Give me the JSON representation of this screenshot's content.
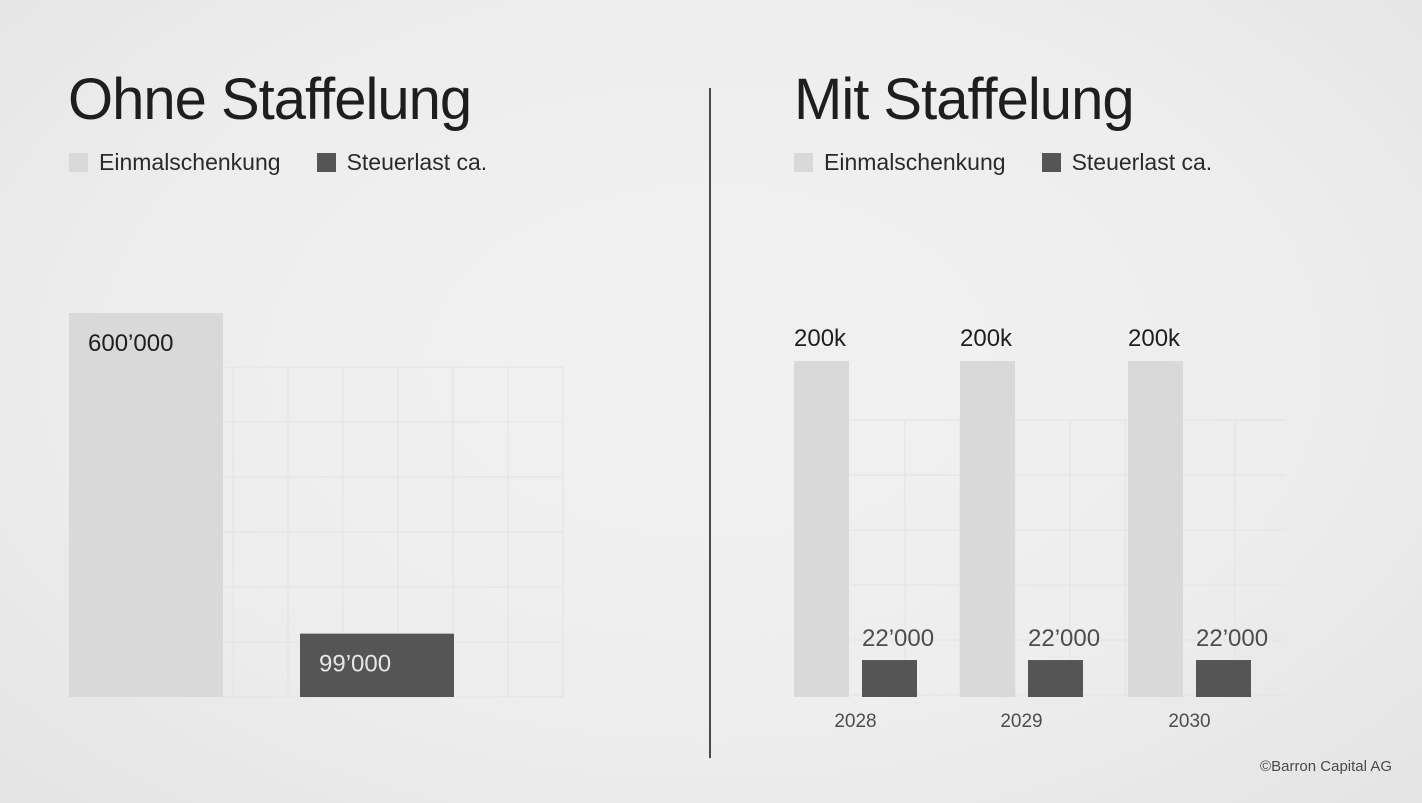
{
  "colors": {
    "einmalschenkung": "#d9d9d9",
    "steuerlast": "#555555",
    "grid": "#e3e3e3",
    "label_dark": "#1f1f1f",
    "label_light": "#e6e6e6",
    "label_mid": "#4d4d4d"
  },
  "chart_data": [
    {
      "type": "bar",
      "title": "Ohne Staffelung",
      "legend": {
        "placement": "top-left",
        "items": [
          "Einmalschenkung",
          "Steuerlast ca."
        ]
      },
      "grid": true,
      "ylim": [
        0,
        600000
      ],
      "series": [
        {
          "name": "Einmalschenkung",
          "values": [
            600000
          ],
          "labels": [
            "600’000"
          ]
        },
        {
          "name": "Steuerlast ca.",
          "values": [
            99000
          ],
          "labels": [
            "99’000"
          ]
        }
      ]
    },
    {
      "type": "bar",
      "title": "Mit Staffelung",
      "legend": {
        "placement": "top-left",
        "items": [
          "Einmalschenkung",
          "Steuerlast ca."
        ]
      },
      "grid": true,
      "categories": [
        "2028",
        "2029",
        "2030"
      ],
      "ylim": [
        0,
        200000
      ],
      "series": [
        {
          "name": "Einmalschenkung",
          "values": [
            200000,
            200000,
            200000
          ],
          "labels": [
            "200k",
            "200k",
            "200k"
          ]
        },
        {
          "name": "Steuerlast ca.",
          "values": [
            22000,
            22000,
            22000
          ],
          "labels": [
            "22’000",
            "22’000",
            "22’000"
          ]
        }
      ]
    }
  ],
  "footer": {
    "copyright": "©Barron Capital AG"
  }
}
